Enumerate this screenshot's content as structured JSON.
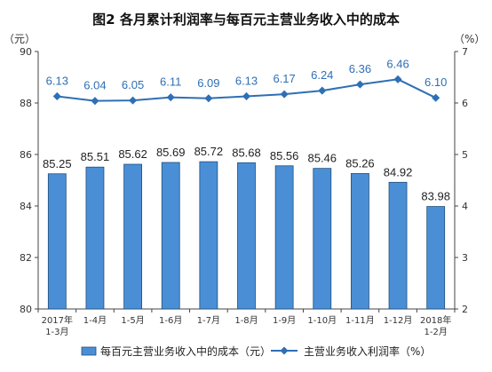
{
  "chart_data": {
    "type": "bar",
    "title": "图2 各月累计利润率与每百元主营业务收入中的成本",
    "left_unit": "（元）",
    "right_unit": "（%）",
    "categories": [
      [
        "2017年",
        "1-3月"
      ],
      [
        "1-4月"
      ],
      [
        "1-5月"
      ],
      [
        "1-6月"
      ],
      [
        "1-7月"
      ],
      [
        "1-8月"
      ],
      [
        "1-9月"
      ],
      [
        "1-10月"
      ],
      [
        "1-11月"
      ],
      [
        "1-12月"
      ],
      [
        "2018年",
        "1-2月"
      ]
    ],
    "series": [
      {
        "name": "每百元主营业务收入中的成本（元）",
        "type": "bar",
        "axis": "left",
        "color": "#4a8fd6",
        "values": [
          85.25,
          85.51,
          85.62,
          85.69,
          85.72,
          85.68,
          85.56,
          85.46,
          85.26,
          84.92,
          83.98
        ]
      },
      {
        "name": "主营业务收入利润率（%）",
        "type": "line",
        "axis": "right",
        "color": "#2e6fb5",
        "values": [
          6.13,
          6.04,
          6.05,
          6.11,
          6.09,
          6.13,
          6.17,
          6.24,
          6.36,
          6.46,
          6.1
        ]
      }
    ],
    "y_left": {
      "min": 80,
      "max": 90,
      "ticks": [
        80,
        82,
        84,
        86,
        88,
        90
      ]
    },
    "y_right": {
      "min": 2,
      "max": 7,
      "ticks": [
        2,
        3,
        4,
        5,
        6,
        7
      ]
    },
    "grid": false,
    "legend_position": "bottom"
  }
}
